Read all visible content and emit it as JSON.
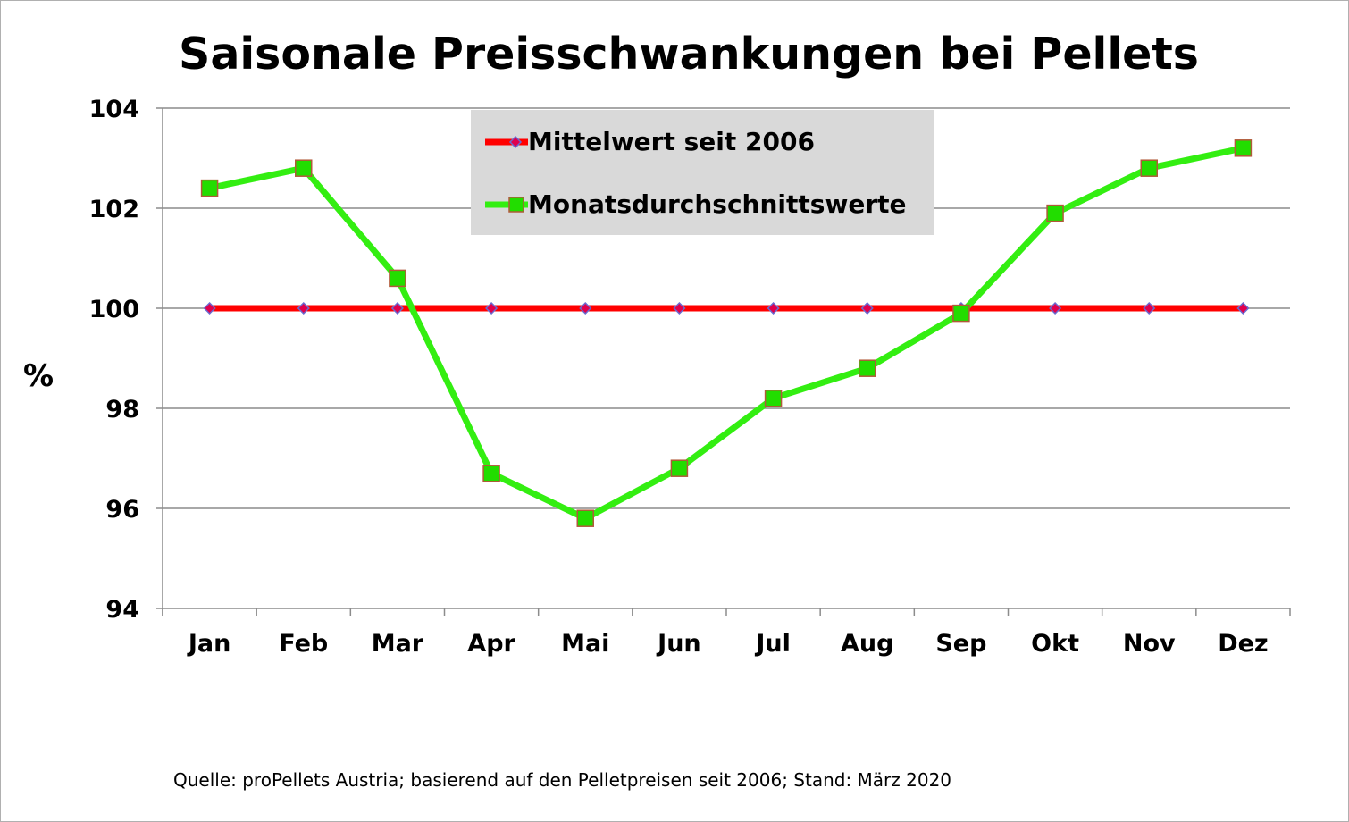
{
  "chart_data": {
    "type": "line",
    "title": "Saisonale Preisschwankungen bei Pellets",
    "ylabel": "%",
    "xlabel": "",
    "ylim": [
      94,
      104
    ],
    "yticks": [
      94,
      96,
      98,
      100,
      102,
      104
    ],
    "categories": [
      "Jan",
      "Feb",
      "Mar",
      "Apr",
      "Mai",
      "Jun",
      "Jul",
      "Aug",
      "Sep",
      "Okt",
      "Nov",
      "Dez"
    ],
    "grid": true,
    "legend_position": "top-center",
    "series": [
      {
        "name": "Mittelwert seit 2006",
        "color": "#ff0000",
        "marker": "diamond",
        "marker_color": "#e0004d",
        "values": [
          100,
          100,
          100,
          100,
          100,
          100,
          100,
          100,
          100,
          100,
          100,
          100
        ]
      },
      {
        "name": "Monatsdurchschnittswerte",
        "color": "#33ee11",
        "marker": "square",
        "marker_color": "#22dd00",
        "values": [
          102.4,
          102.8,
          100.6,
          96.7,
          95.8,
          96.8,
          98.2,
          98.8,
          99.9,
          101.9,
          102.8,
          103.2
        ]
      }
    ]
  },
  "source_note": "Quelle: proPellets Austria; basierend auf den Pelletpreisen seit 2006; Stand: März 2020"
}
